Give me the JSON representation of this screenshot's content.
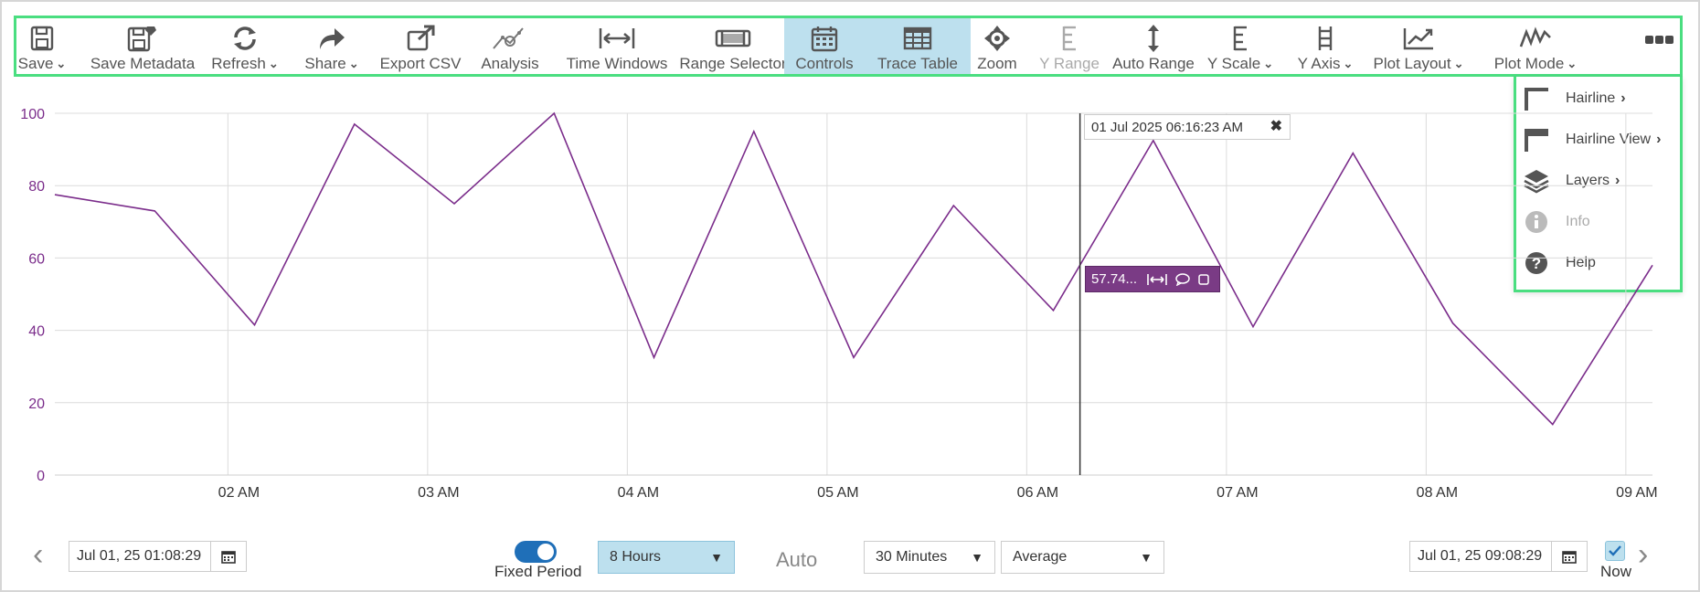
{
  "toolbar": {
    "items": [
      {
        "label": "Save",
        "chevron": true,
        "icon": "save-icon"
      },
      {
        "label": "Save Metadata",
        "chevron": false,
        "icon": "save-metadata-icon"
      },
      {
        "label": "Refresh",
        "chevron": true,
        "icon": "refresh-icon"
      },
      {
        "label": "Share",
        "chevron": true,
        "icon": "share-icon"
      },
      {
        "label": "Export CSV",
        "chevron": false,
        "icon": "export-icon"
      },
      {
        "label": "Analysis",
        "chevron": false,
        "icon": "analysis-icon"
      },
      {
        "label": "Time Windows",
        "chevron": false,
        "icon": "time-windows-icon"
      },
      {
        "label": "Range Selector",
        "chevron": false,
        "icon": "range-selector-icon"
      },
      {
        "label": "Controls",
        "chevron": false,
        "icon": "calendar-icon",
        "active": true
      },
      {
        "label": "Trace Table",
        "chevron": false,
        "icon": "table-icon",
        "active": true
      },
      {
        "label": "Zoom",
        "chevron": false,
        "icon": "zoom-icon"
      },
      {
        "label": "Y Range",
        "chevron": false,
        "icon": "y-range-icon",
        "disabled": true
      },
      {
        "label": "Auto Range",
        "chevron": false,
        "icon": "auto-range-icon"
      },
      {
        "label": "Y Scale",
        "chevron": true,
        "icon": "y-scale-icon"
      },
      {
        "label": "Y Axis",
        "chevron": true,
        "icon": "y-axis-icon"
      },
      {
        "label": "Plot Layout",
        "chevron": true,
        "icon": "plot-layout-icon"
      },
      {
        "label": "Plot Mode",
        "chevron": true,
        "icon": "plot-mode-icon"
      }
    ]
  },
  "more_menu": {
    "items": [
      {
        "label": "Hairline",
        "chevron": true,
        "icon": "hairline-icon"
      },
      {
        "label": "Hairline View",
        "chevron": true,
        "icon": "hairline-view-icon"
      },
      {
        "label": "Layers",
        "chevron": true,
        "icon": "layers-icon"
      },
      {
        "label": "Info",
        "chevron": false,
        "icon": "info-icon",
        "disabled": true
      },
      {
        "label": "Help",
        "chevron": false,
        "icon": "help-icon"
      }
    ]
  },
  "hairline": {
    "timestamp": "01 Jul 2025 06:16:23 AM",
    "close": "✖",
    "value": "57.74..."
  },
  "chart_data": {
    "type": "line",
    "ylim": [
      0,
      100
    ],
    "yticks": [
      "0",
      "20",
      "40",
      "60",
      "80",
      "100"
    ],
    "xticks": [
      "02 AM",
      "03 AM",
      "04 AM",
      "05 AM",
      "06 AM",
      "07 AM",
      "08 AM",
      "09 AM"
    ],
    "series": [
      {
        "color": "#7b2d8b",
        "points": [
          [
            "01:08",
            77.5
          ],
          [
            "01:38",
            73
          ],
          [
            "02:08",
            41.5
          ],
          [
            "02:38",
            97
          ],
          [
            "03:08",
            75
          ],
          [
            "03:38",
            100
          ],
          [
            "04:08",
            32.5
          ],
          [
            "04:38",
            95
          ],
          [
            "05:08",
            32.5
          ],
          [
            "05:38",
            74.5
          ],
          [
            "06:08",
            45.5
          ],
          [
            "06:38",
            92.5
          ],
          [
            "07:08",
            41
          ],
          [
            "07:38",
            89
          ],
          [
            "08:08",
            42
          ],
          [
            "08:38",
            14
          ],
          [
            "09:08",
            58
          ]
        ]
      }
    ],
    "hairline_time": "06:16"
  },
  "bottom": {
    "start_date": "Jul 01, 25 01:08:29",
    "end_date": "Jul 01, 25 09:08:29",
    "fixed_period_label": "Fixed Period",
    "period": "8 Hours",
    "auto_label": "Auto",
    "interval": "30 Minutes",
    "aggregate": "Average",
    "now_label": "Now"
  }
}
